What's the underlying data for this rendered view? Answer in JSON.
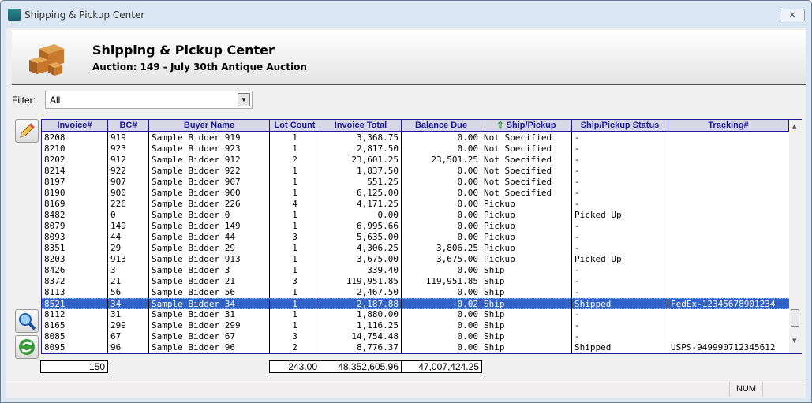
{
  "window": {
    "title": "Shipping & Pickup Center",
    "close": "⨯"
  },
  "banner": {
    "title": "Shipping & Pickup Center",
    "subtitle": "Auction: 149 - July 30th Antique Auction"
  },
  "filter": {
    "label": "Filter:",
    "value": "All"
  },
  "columns": [
    "Invoice#",
    "BC#",
    "Buyer Name",
    "Lot Count",
    "Invoice Total",
    "Balance Due",
    "Ship/Pickup",
    "Ship/Pickup Status",
    "Tracking#"
  ],
  "sorted_column": "Ship/Pickup",
  "rows": [
    [
      "8208",
      "919",
      "Sample Bidder 919",
      "1",
      "3,368.75",
      "0.00",
      "Not Specified",
      "-",
      ""
    ],
    [
      "8210",
      "923",
      "Sample Bidder 923",
      "1",
      "2,817.50",
      "0.00",
      "Not Specified",
      "-",
      ""
    ],
    [
      "8202",
      "912",
      "Sample Bidder 912",
      "2",
      "23,601.25",
      "23,501.25",
      "Not Specified",
      "-",
      ""
    ],
    [
      "8214",
      "922",
      "Sample Bidder 922",
      "1",
      "1,837.50",
      "0.00",
      "Not Specified",
      "-",
      ""
    ],
    [
      "8197",
      "907",
      "Sample Bidder 907",
      "1",
      "551.25",
      "0.00",
      "Not Specified",
      "-",
      ""
    ],
    [
      "8190",
      "900",
      "Sample Bidder 900",
      "1",
      "6,125.00",
      "0.00",
      "Not Specified",
      "-",
      ""
    ],
    [
      "8169",
      "226",
      "Sample Bidder 226",
      "4",
      "4,171.25",
      "0.00",
      "Pickup",
      "-",
      ""
    ],
    [
      "8482",
      "0",
      "Sample Bidder 0",
      "1",
      "0.00",
      "0.00",
      "Pickup",
      "Picked Up",
      ""
    ],
    [
      "8079",
      "149",
      "Sample Bidder 149",
      "1",
      "6,995.66",
      "0.00",
      "Pickup",
      "-",
      ""
    ],
    [
      "8093",
      "44",
      "Sample Bidder 44",
      "3",
      "5,635.00",
      "0.00",
      "Pickup",
      "-",
      ""
    ],
    [
      "8351",
      "29",
      "Sample Bidder 29",
      "1",
      "4,306.25",
      "3,806.25",
      "Pickup",
      "-",
      ""
    ],
    [
      "8203",
      "913",
      "Sample Bidder 913",
      "1",
      "3,675.00",
      "3,675.00",
      "Pickup",
      "Picked Up",
      ""
    ],
    [
      "8426",
      "3",
      "Sample Bidder 3",
      "1",
      "339.40",
      "0.00",
      "Ship",
      "-",
      ""
    ],
    [
      "8372",
      "21",
      "Sample Bidder 21",
      "3",
      "119,951.85",
      "119,951.85",
      "Ship",
      "-",
      ""
    ],
    [
      "8113",
      "56",
      "Sample Bidder 56",
      "1",
      "2,467.50",
      "0.00",
      "Ship",
      "-",
      ""
    ],
    [
      "8521",
      "34",
      "Sample Bidder 34",
      "1",
      "2,187.88",
      "-0.02",
      "Ship",
      "Shipped",
      "FedEx-12345678901234"
    ],
    [
      "8112",
      "31",
      "Sample Bidder 31",
      "1",
      "1,880.00",
      "0.00",
      "Ship",
      "-",
      ""
    ],
    [
      "8165",
      "299",
      "Sample Bidder 299",
      "1",
      "1,116.25",
      "0.00",
      "Ship",
      "-",
      ""
    ],
    [
      "8085",
      "67",
      "Sample Bidder 67",
      "3",
      "14,754.48",
      "0.00",
      "Ship",
      "-",
      ""
    ],
    [
      "8095",
      "96",
      "Sample Bidder 96",
      "2",
      "8,776.37",
      "0.00",
      "Ship",
      "Shipped",
      "USPS-949990712345612"
    ]
  ],
  "selected_row": 15,
  "totals": {
    "count": "150",
    "lot_count": "243.00",
    "invoice_total": "48,352,605.96",
    "balance_due": "47,007,424.25"
  },
  "statusbar": {
    "num": "NUM"
  },
  "colors": {
    "selection": "#3162c8",
    "header_text": "#1a1a99"
  }
}
